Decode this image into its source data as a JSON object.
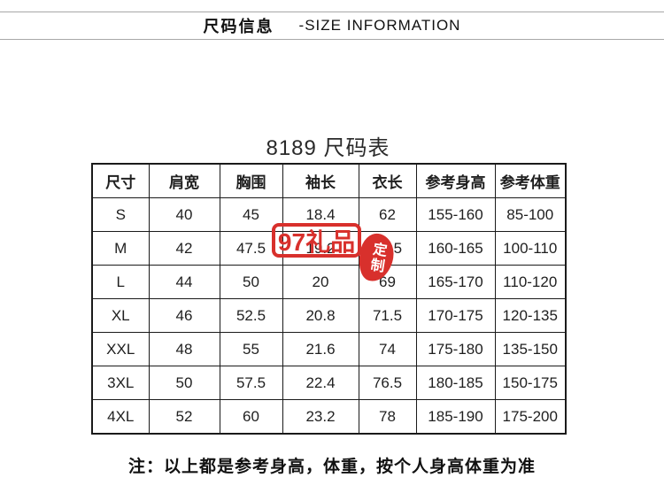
{
  "banner": {
    "title_cn": "尺码信息",
    "title_en": "-SIZE INFORMATION"
  },
  "table": {
    "title": "8189 尺码表",
    "columns": [
      "尺寸",
      "肩宽",
      "胸围",
      "袖长",
      "衣长",
      "参考身高",
      "参考体重"
    ],
    "rows": [
      [
        "S",
        "40",
        "45",
        "18.4",
        "62",
        "155-160",
        "85-100"
      ],
      [
        "M",
        "42",
        "47.5",
        "19.2",
        "65.5",
        "160-165",
        "100-110"
      ],
      [
        "L",
        "44",
        "50",
        "20",
        "69",
        "165-170",
        "110-120"
      ],
      [
        "XL",
        "46",
        "52.5",
        "20.8",
        "71.5",
        "170-175",
        "120-135"
      ],
      [
        "XXL",
        "48",
        "55",
        "21.6",
        "74",
        "175-180",
        "135-150"
      ],
      [
        "3XL",
        "50",
        "57.5",
        "22.4",
        "76.5",
        "180-185",
        "150-175"
      ],
      [
        "4XL",
        "52",
        "60",
        "23.2",
        "78",
        "185-190",
        "175-200"
      ]
    ]
  },
  "note": "注：以上都是参考身高，体重，按个人人身高体重为准",
  "note_text": "注：以上都是参考身高，体重，按个人身高体重为准",
  "watermark": {
    "box_text": "97礼品",
    "seal_text": "定制",
    "color": "#d8302c"
  }
}
